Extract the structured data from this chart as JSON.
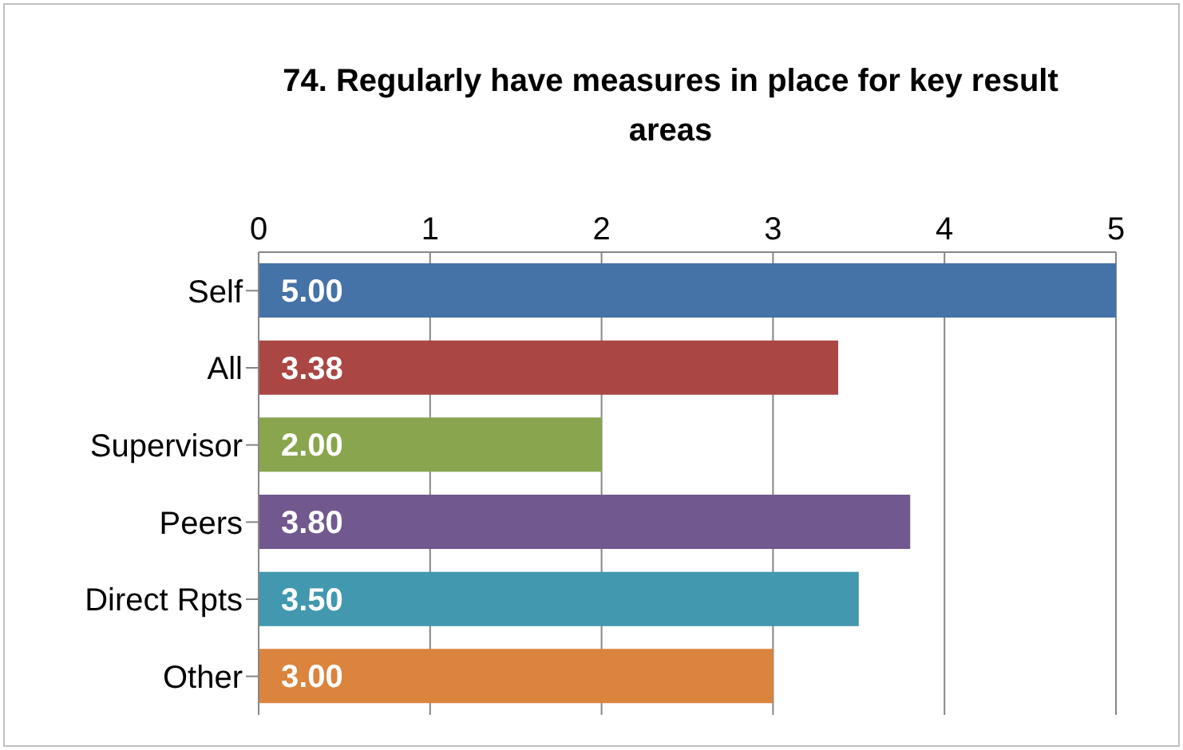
{
  "chart_data": {
    "type": "bar",
    "orientation": "horizontal",
    "title": "74.  Regularly have measures in place for key result areas",
    "categories": [
      "Self",
      "All",
      "Supervisor",
      "Peers",
      "Direct Rpts",
      "Other"
    ],
    "values": [
      5.0,
      3.38,
      2.0,
      3.8,
      3.5,
      3.0
    ],
    "value_labels": [
      "5.00",
      "3.38",
      "2.00",
      "3.80",
      "3.50",
      "3.00"
    ],
    "colors": [
      "#4572a7",
      "#aa4643",
      "#89a54e",
      "#71588f",
      "#4198af",
      "#db843d"
    ],
    "xlim": [
      0,
      5
    ],
    "xticks": [
      0,
      1,
      2,
      3,
      4,
      5
    ],
    "grid": "x"
  }
}
